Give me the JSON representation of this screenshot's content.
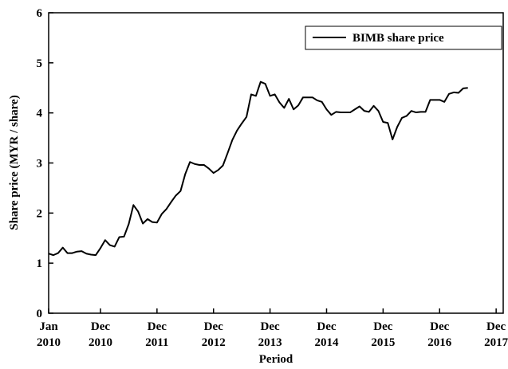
{
  "chart_data": {
    "type": "line",
    "x_label": "Period",
    "y_label": "Share price (MYR / share)",
    "legend": "top-right",
    "x": [
      0,
      1,
      2,
      3,
      4,
      5,
      6,
      7,
      8,
      9,
      10,
      11,
      12,
      13,
      14,
      15,
      16,
      17,
      18,
      19,
      20,
      21,
      22,
      23,
      24,
      25,
      26,
      27,
      28,
      29,
      30,
      31,
      32,
      33,
      34,
      35,
      36,
      37,
      38,
      39,
      40,
      41,
      42,
      43,
      44,
      45,
      46,
      47,
      48,
      49,
      50,
      51,
      52,
      53,
      54,
      55,
      56,
      57,
      58,
      59,
      60,
      61,
      62,
      63,
      64,
      65,
      66,
      67,
      68,
      69,
      70,
      71,
      72,
      73,
      74,
      75,
      76,
      77,
      78,
      79,
      80,
      81,
      82,
      83,
      84,
      85,
      86,
      87,
      88,
      89
    ],
    "series": [
      {
        "name": "BIMB share price",
        "color": "#000000",
        "values": [
          1.19,
          1.16,
          1.2,
          1.31,
          1.2,
          1.2,
          1.23,
          1.24,
          1.19,
          1.17,
          1.16,
          1.3,
          1.46,
          1.36,
          1.33,
          1.52,
          1.53,
          1.78,
          2.16,
          2.03,
          1.79,
          1.88,
          1.82,
          1.81,
          1.98,
          2.08,
          2.22,
          2.35,
          2.44,
          2.78,
          3.02,
          2.98,
          2.96,
          2.96,
          2.89,
          2.8,
          2.86,
          2.95,
          3.2,
          3.46,
          3.65,
          3.79,
          3.92,
          4.37,
          4.34,
          4.62,
          4.58,
          4.34,
          4.37,
          4.21,
          4.1,
          4.28,
          4.07,
          4.15,
          4.31,
          4.31,
          4.31,
          4.25,
          4.22,
          4.07,
          3.96,
          4.02,
          4.01,
          4.01,
          4.01,
          4.07,
          4.13,
          4.04,
          4.02,
          4.14,
          4.04,
          3.82,
          3.8,
          3.47,
          3.72,
          3.9,
          3.94,
          4.04,
          4.01,
          4.02,
          4.02,
          4.26,
          4.26,
          4.26,
          4.22,
          4.38,
          4.41,
          4.4,
          4.49,
          4.5
        ]
      }
    ],
    "xlim": [
      0,
      96.5
    ],
    "xticks": [
      {
        "value": 0,
        "label": "Jan 2010"
      },
      {
        "value": 11,
        "label": "Dec 2010"
      },
      {
        "value": 23,
        "label": "Dec 2011"
      },
      {
        "value": 35,
        "label": "Dec 2012"
      },
      {
        "value": 47,
        "label": "Dec 2013"
      },
      {
        "value": 59,
        "label": "Dec 2014"
      },
      {
        "value": 71,
        "label": "Dec 2015"
      },
      {
        "value": 83,
        "label": "Dec 2016"
      },
      {
        "value": 95,
        "label": "Dec 2017"
      }
    ],
    "ylim": [
      0,
      6
    ],
    "yticks": [
      0,
      1,
      2,
      3,
      4,
      5,
      6
    ]
  }
}
